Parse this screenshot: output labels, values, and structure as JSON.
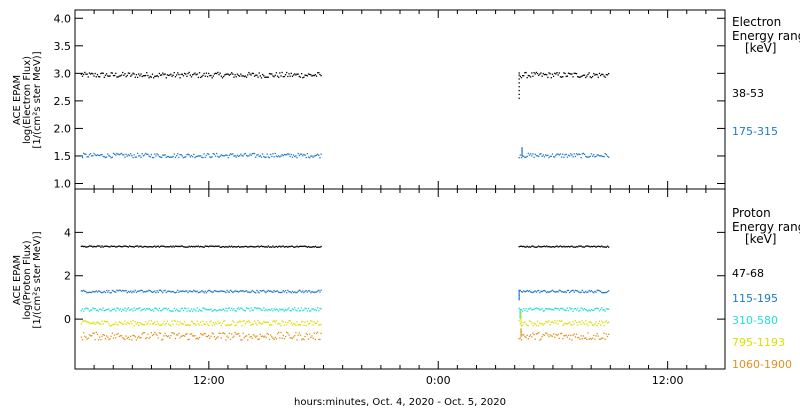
{
  "x_axis": {
    "ticks": [
      {
        "hour": 12,
        "label": "12:00"
      },
      {
        "hour": 24,
        "label": "0:00"
      },
      {
        "hour": 36,
        "label": "12:00"
      }
    ],
    "range_hours": [
      5,
      39
    ],
    "xlabel": "hours:minutes, Oct.  4, 2020 - Oct.  5, 2020"
  },
  "colors": {
    "black": "#000000",
    "blue": "#1f78c8",
    "cyan": "#22dddd",
    "yellow": "#d9e000",
    "orange": "#e0901e"
  },
  "chart_data": [
    {
      "type": "scatter",
      "name": "electron-panel",
      "ylabel_lines": [
        "ACE EPAM",
        "log(Electron Flux)",
        "[1/(cm²s ster MeV)]"
      ],
      "ylim": [
        0.9,
        4.15
      ],
      "yticks": [
        1.0,
        1.5,
        2.0,
        2.5,
        3.0,
        3.5,
        4.0
      ],
      "ytick_labels": [
        "1.0",
        "1.5",
        "2.0",
        "2.5",
        "3.0",
        "3.5",
        "4.0"
      ],
      "legend_title": [
        "Electron",
        "Energy ranges",
        "[keV]"
      ],
      "segments_hours": [
        [
          5.3,
          17.9
        ],
        [
          28.2,
          32.9
        ]
      ],
      "series": [
        {
          "name": "38-53",
          "color": "#000000",
          "level": 2.97,
          "scatter": 0.05,
          "spike": [
            28.2,
            2.55
          ]
        },
        {
          "name": "175-315",
          "color": "#1f78c8",
          "level": 1.51,
          "scatter": 0.04,
          "spike": [
            28.35,
            1.65
          ]
        }
      ]
    },
    {
      "type": "scatter",
      "name": "proton-panel",
      "ylabel_lines": [
        "ACE EPAM",
        "log(Proton Flux)",
        "[1/(cm²s ster MeV)]"
      ],
      "ylim": [
        -2.3,
        6.0
      ],
      "yticks": [
        0,
        2,
        4
      ],
      "ytick_labels": [
        "0",
        "2",
        "4"
      ],
      "legend_title": [
        "Proton",
        "Energy ranges",
        "[keV]"
      ],
      "segments_hours": [
        [
          5.3,
          17.9
        ],
        [
          28.2,
          32.9
        ]
      ],
      "series": [
        {
          "name": "47-68",
          "color": "#000000",
          "level": 3.35,
          "scatter": 0.03,
          "spike": null
        },
        {
          "name": "115-195",
          "color": "#1f78c8",
          "level": 1.28,
          "scatter": 0.06,
          "spike": [
            28.2,
            0.9
          ]
        },
        {
          "name": "310-580",
          "color": "#22dddd",
          "level": 0.45,
          "scatter": 0.08,
          "spike": [
            28.25,
            0.05
          ]
        },
        {
          "name": "795-1193",
          "color": "#d9e000",
          "level": -0.18,
          "scatter": 0.12,
          "spike": [
            28.3,
            0.3
          ]
        },
        {
          "name": "1060-1900",
          "color": "#e0901e",
          "level": -0.78,
          "scatter": 0.18,
          "spike": [
            28.3,
            -0.45
          ]
        }
      ]
    }
  ]
}
